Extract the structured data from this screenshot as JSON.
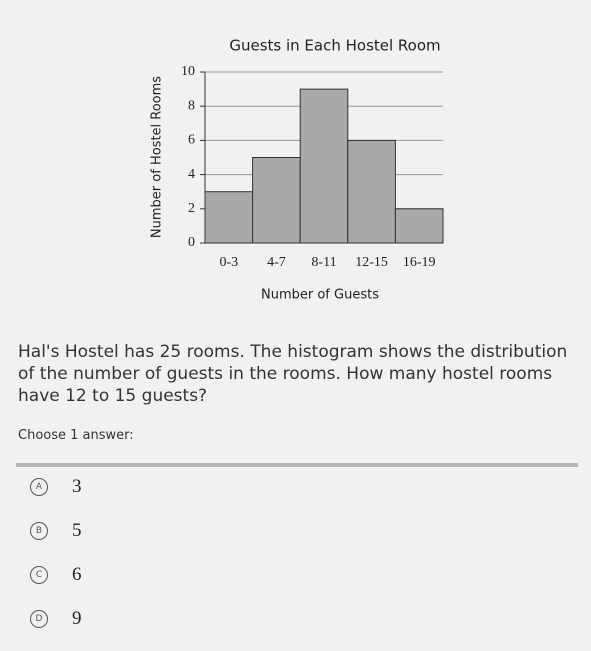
{
  "chart_data": {
    "type": "histogram",
    "title": "Guests in Each Hostel Room",
    "x_label": "Number of Guests",
    "y_label": "Number of Hostel Rooms",
    "categories": [
      "0-3",
      "4-7",
      "8-11",
      "12-15",
      "16-19"
    ],
    "values": [
      3,
      5,
      9,
      6,
      2
    ],
    "color": "#a9a9a9",
    "ylim": [
      0,
      10
    ],
    "yticks": [
      0,
      2,
      4,
      6,
      8,
      10
    ],
    "grid": true
  },
  "question": "Hal's Hostel has 25 rooms. The histogram shows the distribution of the number of guests in the rooms. How many hostel rooms have 12 to 15 guests?",
  "prompt": "Choose 1 answer:",
  "choices": [
    {
      "letter": "A",
      "text": "3"
    },
    {
      "letter": "B",
      "text": "5"
    },
    {
      "letter": "C",
      "text": "6"
    },
    {
      "letter": "D",
      "text": "9"
    }
  ]
}
